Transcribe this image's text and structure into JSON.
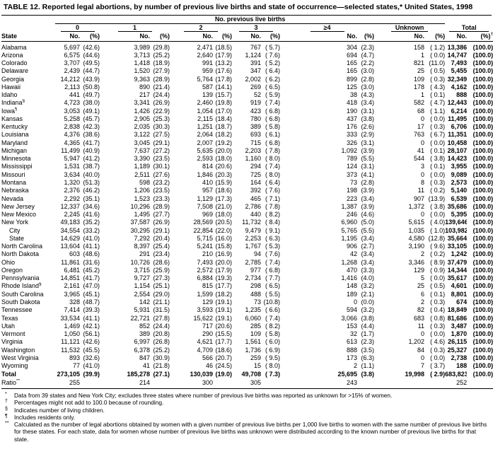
{
  "title": "TABLE 12. Reported legal abortions, by number of previous live births and state of occurrence—selected states,* United States, 1998",
  "header": {
    "group_title": "No. previous live births",
    "col_groups": [
      "0",
      "1",
      "2",
      "3",
      "≥4",
      "Unknown"
    ],
    "total_label": "Total",
    "state_label": "State",
    "no_label": "No.",
    "pct_label": "(%)",
    "total_dagger": "†"
  },
  "rows": [
    {
      "state": "Alabama",
      "sup": "",
      "indent": false,
      "cells": [
        "5,697",
        "(42.6)",
        "3,989",
        "(29.8)",
        "2,471",
        "(18.5)",
        "767",
        "( 5.7)",
        "304",
        "(2.3)",
        "158",
        "( 1.2)",
        "13,386",
        "(100.0)"
      ]
    },
    {
      "state": "Arizona",
      "sup": "",
      "indent": false,
      "cells": [
        "6,575",
        "(44.6)",
        "3,713",
        "(25.2)",
        "2,640",
        "(17.9)",
        "1,124",
        "( 7.6)",
        "694",
        "(4.7)",
        "1",
        "( 0.0)",
        "14,747",
        "(100.0)"
      ]
    },
    {
      "state": "Colorado",
      "sup": "",
      "indent": false,
      "cells": [
        "3,707",
        "(49.5)",
        "1,418",
        "(18.9)",
        "991",
        "(13.2)",
        "391",
        "( 5.2)",
        "165",
        "(2.2)",
        "821",
        "(11.0)",
        "7,493",
        "(100.0)"
      ]
    },
    {
      "state": "Delaware",
      "sup": "",
      "indent": false,
      "cells": [
        "2,439",
        "(44.7)",
        "1,520",
        "(27.9)",
        "959",
        "(17.6)",
        "347",
        "( 6.4)",
        "165",
        "(3.0)",
        "25",
        "( 0.5)",
        "5,455",
        "(100.0)"
      ]
    },
    {
      "state": "Georgia",
      "sup": "",
      "indent": false,
      "cells": [
        "14,212",
        "(43.9)",
        "9,363",
        "(28.9)",
        "5,764",
        "(17.8)",
        "2,002",
        "( 6.2)",
        "899",
        "(2.8)",
        "109",
        "( 0.3)",
        "32,349",
        "(100.0)"
      ]
    },
    {
      "state": "Hawaii",
      "sup": "",
      "indent": false,
      "cells": [
        "2,113",
        "(50.8)",
        "890",
        "(21.4)",
        "587",
        "(14.1)",
        "269",
        "( 6.5)",
        "125",
        "(3.0)",
        "178",
        "( 4.3)",
        "4,162",
        "(100.0)"
      ]
    },
    {
      "state": "Idaho",
      "sup": "",
      "indent": false,
      "cells": [
        "441",
        "(49.7)",
        "217",
        "(24.4)",
        "139",
        "(15.7)",
        "52",
        "( 5.9)",
        "38",
        "(4.3)",
        "1",
        "( 0.1)",
        "888",
        "(100.0)"
      ]
    },
    {
      "state": "Indiana",
      "sup": "§",
      "indent": false,
      "cells": [
        "4,723",
        "(38.0)",
        "3,341",
        "(26.9)",
        "2,460",
        "(19.8)",
        "919",
        "( 7.4)",
        "418",
        "(3.4)",
        "582",
        "( 4.7)",
        "12,443",
        "(100.0)"
      ]
    },
    {
      "state": "Iowa",
      "sup": "¶",
      "indent": false,
      "cells": [
        "3,053",
        "(49.1)",
        "1,426",
        "(22.9)",
        "1,054",
        "(17.0)",
        "423",
        "( 6.8)",
        "190",
        "(3.1)",
        "68",
        "( 1.1)",
        "6,214",
        "(100.0)"
      ]
    },
    {
      "state": "Kansas",
      "sup": "",
      "indent": false,
      "cells": [
        "5,258",
        "(45.7)",
        "2,905",
        "(25.3)",
        "2,115",
        "(18.4)",
        "780",
        "( 6.8)",
        "437",
        "(3.8)",
        "0",
        "( 0.0)",
        "11,495",
        "(100.0)"
      ]
    },
    {
      "state": "Kentucky",
      "sup": "",
      "indent": false,
      "cells": [
        "2,838",
        "(42.3)",
        "2,035",
        "(30.3)",
        "1,251",
        "(18.7)",
        "389",
        "( 5.8)",
        "176",
        "(2.6)",
        "17",
        "( 0.3)",
        "6,706",
        "(100.0)"
      ]
    },
    {
      "state": "Louisiana",
      "sup": "",
      "indent": false,
      "cells": [
        "4,376",
        "(38.6)",
        "3,122",
        "(27.5)",
        "2,064",
        "(18.2)",
        "693",
        "( 6.1)",
        "333",
        "(2.9)",
        "763",
        "( 6.7)",
        "11,351",
        "(100.0)"
      ]
    },
    {
      "state": "Maryland",
      "sup": "",
      "indent": false,
      "cells": [
        "4,365",
        "(41.7)",
        "3,045",
        "(29.1)",
        "2,007",
        "(19.2)",
        "715",
        "( 6.8)",
        "326",
        "(3.1)",
        "0",
        "( 0.0)",
        "10,458",
        "(100.0)"
      ]
    },
    {
      "state": "Michigan",
      "sup": "",
      "indent": false,
      "cells": [
        "11,499",
        "(40.9)",
        "7,637",
        "(27.2)",
        "5,635",
        "(20.0)",
        "2,203",
        "( 7.8)",
        "1,092",
        "(3.9)",
        "41",
        "( 0.1)",
        "28,107",
        "(100.0)"
      ]
    },
    {
      "state": "Minnesota",
      "sup": "",
      "indent": false,
      "cells": [
        "5,947",
        "(41.2)",
        "3,390",
        "(23.5)",
        "2,593",
        "(18.0)",
        "1,160",
        "( 8.0)",
        "789",
        "(5.5)",
        "544",
        "( 3.8)",
        "14,423",
        "(100.0)"
      ]
    },
    {
      "state": "Mississippi",
      "sup": "",
      "indent": false,
      "cells": [
        "1,531",
        "(38.7)",
        "1,189",
        "(30.1)",
        "814",
        "(20.6)",
        "294",
        "( 7.4)",
        "124",
        "(3.1)",
        "3",
        "( 0.1)",
        "3,955",
        "(100.0)"
      ]
    },
    {
      "state": "Missouri",
      "sup": "",
      "indent": false,
      "cells": [
        "3,634",
        "(40.0)",
        "2,511",
        "(27.6)",
        "1,846",
        "(20.3)",
        "725",
        "( 8.0)",
        "373",
        "(4.1)",
        "0",
        "( 0.0)",
        "9,089",
        "(100.0)"
      ]
    },
    {
      "state": "Montana",
      "sup": "",
      "indent": false,
      "cells": [
        "1,320",
        "(51.3)",
        "598",
        "(23.2)",
        "410",
        "(15.9)",
        "164",
        "( 6.4)",
        "73",
        "(2.8)",
        "8",
        "( 0.3)",
        "2,573",
        "(100.0)"
      ]
    },
    {
      "state": "Nebraska",
      "sup": "",
      "indent": false,
      "cells": [
        "2,376",
        "(46.2)",
        "1,206",
        "(23.5)",
        "957",
        "(18.6)",
        "392",
        "( 7.6)",
        "198",
        "(3.9)",
        "11",
        "( 0.2)",
        "5,140",
        "(100.0)"
      ]
    },
    {
      "state": "Nevada",
      "sup": "",
      "indent": false,
      "cells": [
        "2,292",
        "(35.1)",
        "1,523",
        "(23.3)",
        "1,129",
        "(17.3)",
        "465",
        "( 7.1)",
        "223",
        "(3.4)",
        "907",
        "(13.9)",
        "6,539",
        "(100.0)"
      ]
    },
    {
      "state": "New Jersey",
      "sup": "",
      "indent": false,
      "cells": [
        "12,337",
        "(34.6)",
        "10,296",
        "(28.9)",
        "7,508",
        "(21.0)",
        "2,786",
        "( 7.8)",
        "1,387",
        "(3.9)",
        "1,372",
        "( 3.8)",
        "35,686",
        "(100.0)"
      ]
    },
    {
      "state": "New Mexico",
      "sup": "",
      "indent": false,
      "cells": [
        "2,245",
        "(41.6)",
        "1,495",
        "(27.7)",
        "969",
        "(18.0)",
        "440",
        "( 8.2)",
        "246",
        "(4.6)",
        "0",
        "( 0.0)",
        "5,395",
        "(100.0)"
      ]
    },
    {
      "state": "New York",
      "sup": "",
      "indent": false,
      "cells": [
        "49,183",
        "(35.2)",
        "37,587",
        "(26.9)",
        "28,569",
        "(20.5)",
        "11,732",
        "( 8.4)",
        "6,960",
        "(5.0)",
        "5,615",
        "( 4.0)",
        "139,646",
        "(100.0)"
      ]
    },
    {
      "state": "City",
      "sup": "",
      "indent": true,
      "cells": [
        "34,554",
        "(33.2)",
        "30,295",
        "(29.1)",
        "22,854",
        "(22.0)",
        "9,479",
        "( 9.1)",
        "5,765",
        "(5.5)",
        "1,035",
        "( 1.0)",
        "103,982",
        "(100.0)"
      ]
    },
    {
      "state": "State",
      "sup": "",
      "indent": true,
      "cells": [
        "14,629",
        "(41.0)",
        "7,292",
        "(20.4)",
        "5,715",
        "(16.0)",
        "2,253",
        "( 6.3)",
        "1,195",
        "(3.4)",
        "4,580",
        "(12.8)",
        "35,664",
        "(100.0)"
      ]
    },
    {
      "state": "North Carolina",
      "sup": "",
      "indent": false,
      "cells": [
        "13,604",
        "(41.1)",
        "8,397",
        "(25.4)",
        "5,241",
        "(15.8)",
        "1,767",
        "( 5.3)",
        "906",
        "(2.7)",
        "3,190",
        "( 9.6)",
        "33,105",
        "(100.0)"
      ]
    },
    {
      "state": "North Dakota",
      "sup": "",
      "indent": false,
      "cells": [
        "603",
        "(48.6)",
        "291",
        "(23.4)",
        "210",
        "(16.9)",
        "94",
        "( 7.6)",
        "42",
        "(3.4)",
        "2",
        "( 0.2)",
        "1,242",
        "(100.0)"
      ]
    },
    {
      "state": "Ohio",
      "sup": "",
      "indent": false,
      "cells": [
        "11,861",
        "(31.6)",
        "10,726",
        "(28.6)",
        "7,493",
        "(20.0)",
        "2,785",
        "( 7.4)",
        "1,268",
        "(3.4)",
        "3,346",
        "( 8.9)",
        "37,479",
        "(100.0)"
      ]
    },
    {
      "state": "Oregon",
      "sup": "",
      "indent": false,
      "cells": [
        "6,481",
        "(45.2)",
        "3,715",
        "(25.9)",
        "2,572",
        "(17.9)",
        "977",
        "( 6.8)",
        "470",
        "(3.3)",
        "129",
        "( 0.9)",
        "14,344",
        "(100.0)"
      ]
    },
    {
      "state": "Pennsylvania",
      "sup": "",
      "indent": false,
      "cells": [
        "14,851",
        "(41.7)",
        "9,727",
        "(27.3)",
        "6,884",
        "(19.3)",
        "2,734",
        "( 7.7)",
        "1,416",
        "(4.0)",
        "5",
        "( 0.0)",
        "35,617",
        "(100.0)"
      ]
    },
    {
      "state": "Rhode Island",
      "sup": "§",
      "indent": false,
      "cells": [
        "2,161",
        "(47.0)",
        "1,154",
        "(25.1)",
        "815",
        "(17.7)",
        "298",
        "( 6.5)",
        "148",
        "(3.2)",
        "25",
        "( 0.5)",
        "4,601",
        "(100.0)"
      ]
    },
    {
      "state": "South Carolina",
      "sup": "",
      "indent": false,
      "cells": [
        "3,965",
        "(45.1)",
        "2,554",
        "(29.0)",
        "1,599",
        "(18.2)",
        "488",
        "( 5.5)",
        "189",
        "(2.1)",
        "6",
        "( 0.1)",
        "8,801",
        "(100.0)"
      ]
    },
    {
      "state": "South Dakota",
      "sup": "",
      "indent": false,
      "cells": [
        "328",
        "(48.7)",
        "142",
        "(21.1)",
        "129",
        "(19.1)",
        "73",
        "(10.8)",
        "0",
        "(0.0)",
        "2",
        "( 0.3)",
        "674",
        "(100.0)"
      ]
    },
    {
      "state": "Tennessee",
      "sup": "",
      "indent": false,
      "cells": [
        "7,414",
        "(39.3)",
        "5,931",
        "(31.5)",
        "3,593",
        "(19.1)",
        "1,235",
        "( 6.6)",
        "594",
        "(3.2)",
        "82",
        "( 0.4)",
        "18,849",
        "(100.0)"
      ]
    },
    {
      "state": "Texas",
      "sup": "",
      "indent": false,
      "cells": [
        "33,534",
        "(41.1)",
        "22,721",
        "(27.8)",
        "15,622",
        "(19.1)",
        "6,060",
        "( 7.4)",
        "3,066",
        "(3.8)",
        "683",
        "( 0.8)",
        "81,686",
        "(100.0)"
      ]
    },
    {
      "state": "Utah",
      "sup": "",
      "indent": false,
      "cells": [
        "1,469",
        "(42.1)",
        "852",
        "(24.4)",
        "717",
        "(20.6)",
        "285",
        "( 8.2)",
        "153",
        "(4.4)",
        "11",
        "( 0.3)",
        "3,487",
        "(100.0)"
      ]
    },
    {
      "state": "Vermont",
      "sup": "",
      "indent": false,
      "cells": [
        "1,050",
        "(56.1)",
        "389",
        "(20.8)",
        "290",
        "(15.5)",
        "109",
        "( 5.8)",
        "32",
        "(1.7)",
        "0",
        "( 0.0)",
        "1,870",
        "(100.0)"
      ]
    },
    {
      "state": "Virginia",
      "sup": "",
      "indent": false,
      "cells": [
        "11,121",
        "(42.6)",
        "6,997",
        "(26.8)",
        "4,621",
        "(17.7)",
        "1,561",
        "( 6.0)",
        "613",
        "(2.3)",
        "1,202",
        "( 4.6)",
        "26,115",
        "(100.0)"
      ]
    },
    {
      "state": "Washington",
      "sup": "",
      "indent": false,
      "cells": [
        "11,532",
        "(45.5)",
        "6,378",
        "(25.2)",
        "4,709",
        "(18.6)",
        "1,736",
        "( 6.9)",
        "888",
        "(3.5)",
        "84",
        "( 0.3)",
        "25,327",
        "(100.0)"
      ]
    },
    {
      "state": "West Virginia",
      "sup": "",
      "indent": false,
      "cells": [
        "893",
        "(32.6)",
        "847",
        "(30.9)",
        "566",
        "(20.7)",
        "259",
        "( 9.5)",
        "173",
        "(6.3)",
        "0",
        "( 0.0)",
        "2,738",
        "(100.0)"
      ]
    },
    {
      "state": "Wyoming",
      "sup": "",
      "indent": false,
      "cells": [
        "77",
        "(41.0)",
        "41",
        "(21.8)",
        "46",
        "(24.5)",
        "15",
        "( 8.0)",
        "2",
        "(1.1)",
        "7",
        "( 3.7)",
        "188",
        "(100.0)"
      ]
    }
  ],
  "total_row": {
    "state": "Total",
    "cells": [
      "273,105",
      "(39.9)",
      "185,278",
      "(27.1)",
      "130,039",
      "(19.0)",
      "49,708",
      "( 7.3)",
      "25,695",
      "(3.8)",
      "19,998",
      "( 2.9)",
      "683,823",
      "(100.0)"
    ]
  },
  "ratio_row": {
    "label": "Ratio",
    "sup": "**",
    "values": [
      "255",
      "214",
      "300",
      "305",
      "243",
      "",
      "252"
    ]
  },
  "footnotes": [
    {
      "marker": "*",
      "text": "Data from 39 states and New York City; excludes three states where number of previous live births was reported as unknown for >15% of women."
    },
    {
      "marker": "†",
      "text": "Percentages might not add to 100.0 because of rounding."
    },
    {
      "marker": "§",
      "text": "Indicates number of living children."
    },
    {
      "marker": "¶",
      "text": "Includes residents only."
    },
    {
      "marker": "**",
      "text": "Calculated as the number of legal abortions obtained by women with a given number of previous live births per 1,000 live births to women with the same number of previous live births for these states. For each state, data for women whose number of previous live births was unknown were distributed according to the known number of previous live births for that state."
    }
  ]
}
